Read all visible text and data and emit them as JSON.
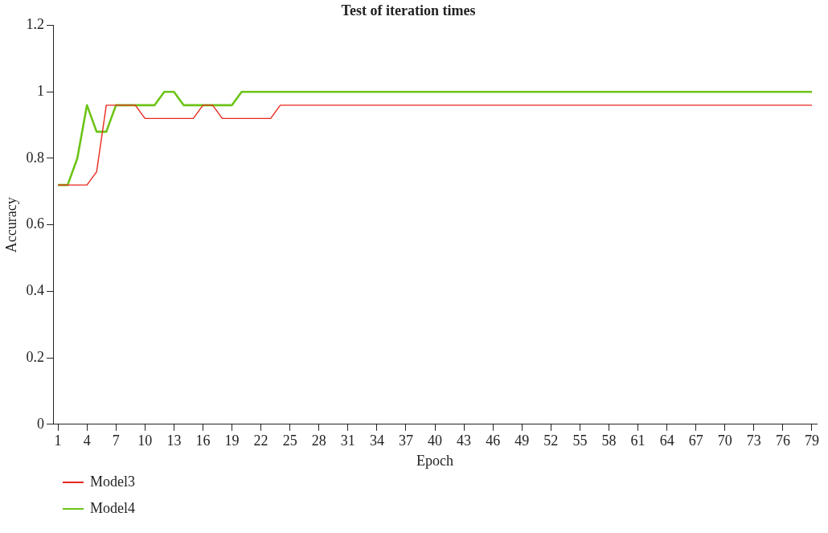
{
  "chart_data": {
    "type": "line",
    "title": "Test of iteration times",
    "xlabel": "Epoch",
    "ylabel": "Accuracy",
    "categories": [
      "1",
      null,
      null,
      "4",
      null,
      null,
      "7",
      null,
      null,
      "10",
      null,
      null,
      "13",
      null,
      null,
      "16",
      null,
      null,
      "19",
      null,
      null,
      "22",
      null,
      null,
      "25",
      null,
      null,
      "28",
      null,
      null,
      "31",
      null,
      null,
      "34",
      null,
      null,
      "37",
      null,
      null,
      "40",
      null,
      null,
      "43",
      null,
      null,
      "46",
      null,
      null,
      "49",
      null,
      null,
      "52",
      null,
      null,
      "55",
      null,
      null,
      "58",
      null,
      null,
      "61",
      null,
      null,
      "64",
      null,
      null,
      "67",
      null,
      null,
      "70",
      null,
      null,
      "73",
      null,
      null,
      "76",
      null,
      null,
      "79"
    ],
    "series": [
      {
        "name": "Model3",
        "color": "#e8281e",
        "values": [
          0.72,
          0.72,
          0.72,
          0.72,
          0.76,
          0.96,
          0.96,
          0.96,
          0.96,
          0.92,
          0.92,
          0.92,
          0.92,
          0.92,
          0.92,
          0.96,
          0.96,
          0.92,
          0.92,
          0.92,
          0.92,
          0.92,
          0.92,
          0.96,
          0.96,
          0.96,
          0.96,
          0.96,
          0.96,
          0.96,
          0.96,
          0.96,
          0.96,
          0.96,
          0.96,
          0.96,
          0.96,
          0.96,
          0.96,
          0.96,
          0.96,
          0.96,
          0.96,
          0.96,
          0.96,
          0.96,
          0.96,
          0.96,
          0.96,
          0.96,
          0.96,
          0.96,
          0.96,
          0.96,
          0.96,
          0.96,
          0.96,
          0.96,
          0.96,
          0.96,
          0.96,
          0.96,
          0.96,
          0.96,
          0.96,
          0.96,
          0.96,
          0.96,
          0.96,
          0.96,
          0.96,
          0.96,
          0.96,
          0.96,
          0.96,
          0.96,
          0.96,
          0.96,
          0.96
        ]
      },
      {
        "name": "Model4",
        "color": "#6cc417",
        "values": [
          0.72,
          0.72,
          0.8,
          0.96,
          0.88,
          0.88,
          0.96,
          0.96,
          0.96,
          0.96,
          0.96,
          1,
          1,
          0.96,
          0.96,
          0.96,
          0.96,
          0.96,
          0.96,
          1,
          1,
          1,
          1,
          1,
          1,
          1,
          1,
          1,
          1,
          1,
          1,
          1,
          1,
          1,
          1,
          1,
          1,
          1,
          1,
          1,
          1,
          1,
          1,
          1,
          1,
          1,
          1,
          1,
          1,
          1,
          1,
          1,
          1,
          1,
          1,
          1,
          1,
          1,
          1,
          1,
          1,
          1,
          1,
          1,
          1,
          1,
          1,
          1,
          1,
          1,
          1,
          1,
          1,
          1,
          1,
          1,
          1,
          1,
          1
        ]
      }
    ],
    "ylim": [
      0,
      1.2
    ],
    "yticks": [
      0,
      0.2,
      0.4,
      0.6,
      0.8,
      1,
      1.2
    ],
    "grid": false,
    "legend": "bottom left",
    "marker": "none",
    "line_style": "solid"
  }
}
